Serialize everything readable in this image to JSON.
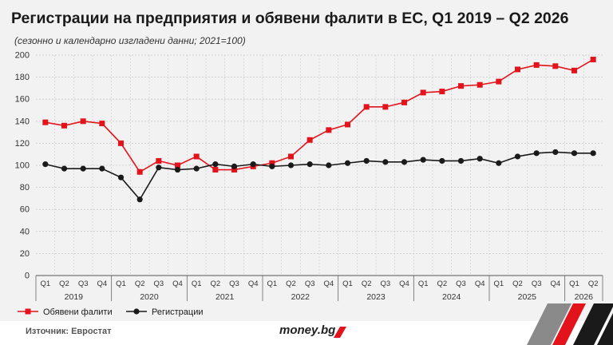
{
  "header": {
    "title": "Регистрации на предприятия и обявени фалити в ЕС, Q1 2019 – Q2 2026",
    "subtitle": "(сезонно и календарно изгладени данни; 2021=100)"
  },
  "footer": {
    "source": "Източник: Евростат",
    "brand": "money.bg"
  },
  "colors": {
    "bankruptcies": "#e3131b",
    "registrations": "#1a1a1a",
    "grid": "#c8c8c8",
    "background": "#f2f2f2"
  },
  "chart_data": {
    "type": "line",
    "title": "Регистрации на предприятия и обявени фалити в ЕС, Q1 2019 – Q2 2026",
    "xlabel": "",
    "ylabel": "",
    "ylim": [
      0,
      200
    ],
    "yticks": [
      0,
      20,
      40,
      60,
      80,
      100,
      120,
      140,
      160,
      180,
      200
    ],
    "grid": true,
    "legend_position": "bottom-left",
    "categories": [
      "Q1",
      "Q2",
      "Q3",
      "Q4",
      "Q1",
      "Q2",
      "Q3",
      "Q4",
      "Q1",
      "Q2",
      "Q3",
      "Q4",
      "Q1",
      "Q2",
      "Q3",
      "Q4",
      "Q1",
      "Q2",
      "Q3",
      "Q4",
      "Q1",
      "Q2",
      "Q3",
      "Q4",
      "Q1",
      "Q2",
      "Q3",
      "Q4",
      "Q1",
      "Q2"
    ],
    "years": [
      {
        "label": "2019",
        "quarters": 4
      },
      {
        "label": "2020",
        "quarters": 4
      },
      {
        "label": "2021",
        "quarters": 4
      },
      {
        "label": "2022",
        "quarters": 4
      },
      {
        "label": "2023",
        "quarters": 4
      },
      {
        "label": "2024",
        "quarters": 4
      },
      {
        "label": "2025",
        "quarters": 4
      },
      {
        "label": "2026",
        "quarters": 2
      }
    ],
    "series": [
      {
        "name": "Обявени фалити",
        "marker": "square",
        "color": "#e3131b",
        "values": [
          139,
          136,
          140,
          138,
          120,
          94,
          104,
          100,
          108,
          96,
          96,
          99,
          102,
          108,
          123,
          132,
          137,
          153,
          153,
          157,
          166,
          167,
          172,
          173,
          176,
          187,
          191,
          190,
          186,
          196
        ]
      },
      {
        "name": "Регистрации",
        "marker": "circle",
        "color": "#1a1a1a",
        "values": [
          101,
          97,
          97,
          97,
          89,
          69,
          98,
          96,
          97,
          101,
          99,
          101,
          99,
          100,
          101,
          100,
          102,
          104,
          103,
          103,
          105,
          104,
          104,
          106,
          102,
          108,
          111,
          112,
          111,
          111
        ]
      }
    ]
  }
}
